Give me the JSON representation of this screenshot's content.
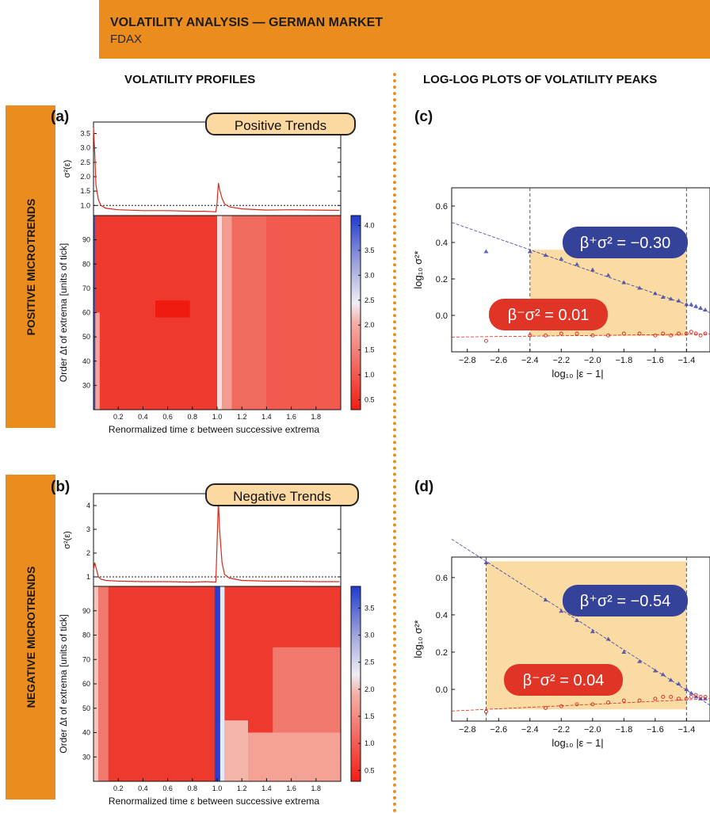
{
  "header": {
    "title": "VOLATILITY ANALYSIS — GERMAN MARKET",
    "subtitle": "FDAX"
  },
  "columns": {
    "left_title": "VOLATILITY PROFILES",
    "right_title": "LOG-LOG PLOTS OF VOLATILITY PEAKS"
  },
  "rows": {
    "top_label": "POSITIVE MICROTRENDS",
    "bottom_label": "NEGATIVE MICROTRENDS"
  },
  "colors": {
    "orange": "#ea8d1e",
    "red_line": "#d62a1c",
    "blue_marker": "#3b3fa8",
    "beta_plus_bg": "#34429a",
    "beta_minus_bg": "#e03526",
    "shade": "#f9dba3",
    "trend_badge": "#fbd9a0"
  },
  "chart_data": [
    {
      "id": "a",
      "panel_label": "(a)",
      "type": "line",
      "badge": "Positive Trends",
      "ylabel": "σ²(ε)",
      "ylim": [
        0.65,
        3.9
      ],
      "xlim": [
        0,
        2
      ],
      "yticks": [
        "1.0",
        "1.5",
        "2.0",
        "2.5",
        "3.0",
        "3.5"
      ],
      "reference_line": 1.0,
      "x": [
        0.0,
        0.01,
        0.02,
        0.04,
        0.06,
        0.1,
        0.2,
        0.4,
        0.6,
        0.8,
        0.9,
        0.99,
        1.0,
        1.01,
        1.02,
        1.04,
        1.06,
        1.1,
        1.2,
        1.4,
        1.6,
        1.8,
        1.99
      ],
      "values": [
        3.7,
        2.8,
        1.7,
        1.2,
        1.0,
        0.9,
        0.85,
        0.82,
        0.82,
        0.8,
        0.8,
        0.78,
        1.1,
        1.78,
        1.55,
        1.25,
        1.05,
        0.95,
        0.88,
        0.84,
        0.85,
        0.84,
        0.83
      ]
    },
    {
      "id": "a-heatmap",
      "type": "heatmap",
      "xlabel": "Renormalized time ε between successive extrema",
      "ylabel": "Order Δt of extrema [units of tick]",
      "xticks": [
        "0.2",
        "0.4",
        "0.6",
        "0.8",
        "1.0",
        "1.2",
        "1.4",
        "1.6",
        "1.8"
      ],
      "yticks": [
        "30",
        "40",
        "50",
        "60",
        "70",
        "80",
        "90"
      ],
      "ylim": [
        20,
        100
      ],
      "colorbar_ticks": [
        "0.5",
        "1.0",
        "1.5",
        "2.0",
        "2.5",
        "3.0",
        "3.5",
        "4.0"
      ],
      "colorbar_range": [
        0.3,
        4.2
      ]
    },
    {
      "id": "b",
      "panel_label": "(b)",
      "type": "line",
      "badge": "Negative Trends",
      "ylabel": "σ²(ε)",
      "ylim": [
        0.6,
        4.5
      ],
      "xlim": [
        0,
        2
      ],
      "yticks": [
        "1",
        "2",
        "3",
        "4"
      ],
      "reference_line": 1.0,
      "x": [
        0.0,
        0.01,
        0.02,
        0.04,
        0.06,
        0.1,
        0.2,
        0.4,
        0.6,
        0.8,
        0.9,
        0.99,
        1.0,
        1.01,
        1.02,
        1.04,
        1.06,
        1.1,
        1.2,
        1.4,
        1.6,
        1.8,
        1.99
      ],
      "values": [
        1.3,
        1.6,
        1.4,
        1.0,
        0.9,
        0.85,
        0.82,
        0.8,
        0.8,
        0.78,
        0.8,
        0.78,
        2.5,
        4.2,
        3.0,
        1.6,
        1.1,
        0.95,
        0.85,
        0.82,
        0.82,
        0.8,
        0.8
      ]
    },
    {
      "id": "b-heatmap",
      "type": "heatmap",
      "xlabel": "Renormalized time ε between successive extrema",
      "ylabel": "Order Δt of extrema [units of tick]",
      "xticks": [
        "0.2",
        "0.4",
        "0.6",
        "0.8",
        "1.0",
        "1.2",
        "1.4",
        "1.6",
        "1.8"
      ],
      "yticks": [
        "30",
        "40",
        "50",
        "60",
        "70",
        "80",
        "90"
      ],
      "ylim": [
        20,
        100
      ],
      "colorbar_ticks": [
        "0.5",
        "1.0",
        "1.5",
        "2.0",
        "2.5",
        "3.0",
        "3.5"
      ],
      "colorbar_range": [
        0.3,
        3.9
      ]
    },
    {
      "id": "c",
      "panel_label": "(c)",
      "type": "scatter",
      "xlabel": "log₁₀ |ε − 1|",
      "ylabel": "log₁₀ σ²*",
      "xlim": [
        -2.9,
        -1.25
      ],
      "ylim": [
        -0.2,
        0.7
      ],
      "xticks": [
        "−2.8",
        "−2.6",
        "−2.4",
        "−2.2",
        "−2.0",
        "−1.8",
        "−1.6",
        "−1.4"
      ],
      "yticks": [
        "0.0",
        "0.2",
        "0.4",
        "0.6"
      ],
      "fit_range": [
        -2.4,
        -1.4
      ],
      "beta_plus": {
        "label": "β⁺σ² = −0.30",
        "slope": -0.3,
        "intercept": -0.36
      },
      "beta_minus": {
        "label": "β⁻σ² = 0.01",
        "slope": 0.01,
        "intercept": -0.09
      },
      "series": [
        {
          "name": "positive",
          "x": [
            -2.68,
            -2.4,
            -2.3,
            -2.2,
            -2.1,
            -2.0,
            -1.9,
            -1.8,
            -1.7,
            -1.6,
            -1.55,
            -1.5,
            -1.45,
            -1.4,
            -1.37,
            -1.34,
            -1.31,
            -1.28
          ],
          "values": [
            0.35,
            0.35,
            0.33,
            0.31,
            0.28,
            0.25,
            0.22,
            0.18,
            0.15,
            0.12,
            0.1,
            0.09,
            0.08,
            0.06,
            0.06,
            0.05,
            0.04,
            0.03
          ]
        },
        {
          "name": "negative",
          "x": [
            -2.68,
            -2.4,
            -2.3,
            -2.2,
            -2.1,
            -2.0,
            -1.9,
            -1.8,
            -1.7,
            -1.6,
            -1.55,
            -1.5,
            -1.45,
            -1.4,
            -1.37,
            -1.34,
            -1.31,
            -1.28
          ],
          "values": [
            -0.14,
            -0.11,
            -0.11,
            -0.1,
            -0.1,
            -0.11,
            -0.11,
            -0.1,
            -0.1,
            -0.11,
            -0.1,
            -0.11,
            -0.1,
            -0.1,
            -0.09,
            -0.1,
            -0.11,
            -0.1
          ]
        }
      ]
    },
    {
      "id": "d",
      "panel_label": "(d)",
      "type": "scatter",
      "xlabel": "log₁₀ |ε − 1|",
      "ylabel": "log₁₀ σ²*",
      "xlim": [
        -2.9,
        -1.25
      ],
      "ylim": [
        -0.17,
        0.71
      ],
      "xticks": [
        "−2.8",
        "−2.6",
        "−2.4",
        "−2.2",
        "−2.0",
        "−1.8",
        "−1.6",
        "−1.4"
      ],
      "yticks": [
        "0.0",
        "0.2",
        "0.4",
        "0.6"
      ],
      "fit_range": [
        -2.68,
        -1.4
      ],
      "beta_plus": {
        "label": "β⁺σ² = −0.54",
        "slope": -0.54,
        "intercept": -0.76
      },
      "beta_minus": {
        "label": "β⁻σ² = 0.04",
        "slope": 0.04,
        "intercept": -0.0
      },
      "series": [
        {
          "name": "positive",
          "x": [
            -2.68,
            -2.3,
            -2.2,
            -2.1,
            -2.0,
            -1.9,
            -1.8,
            -1.7,
            -1.6,
            -1.55,
            -1.5,
            -1.45,
            -1.4,
            -1.37,
            -1.34,
            -1.31,
            -1.28
          ],
          "values": [
            0.68,
            0.48,
            0.42,
            0.37,
            0.31,
            0.27,
            0.2,
            0.15,
            0.1,
            0.08,
            0.05,
            0.03,
            0.0,
            -0.02,
            -0.04,
            -0.05,
            -0.05
          ]
        },
        {
          "name": "negative",
          "x": [
            -2.68,
            -2.3,
            -2.2,
            -2.1,
            -2.0,
            -1.9,
            -1.8,
            -1.7,
            -1.6,
            -1.55,
            -1.5,
            -1.45,
            -1.4,
            -1.37,
            -1.34,
            -1.31,
            -1.28
          ],
          "values": [
            -0.12,
            -0.1,
            -0.09,
            -0.08,
            -0.08,
            -0.07,
            -0.06,
            -0.06,
            -0.05,
            -0.04,
            -0.04,
            -0.05,
            -0.05,
            -0.04,
            -0.03,
            -0.04,
            -0.04
          ]
        }
      ]
    }
  ]
}
